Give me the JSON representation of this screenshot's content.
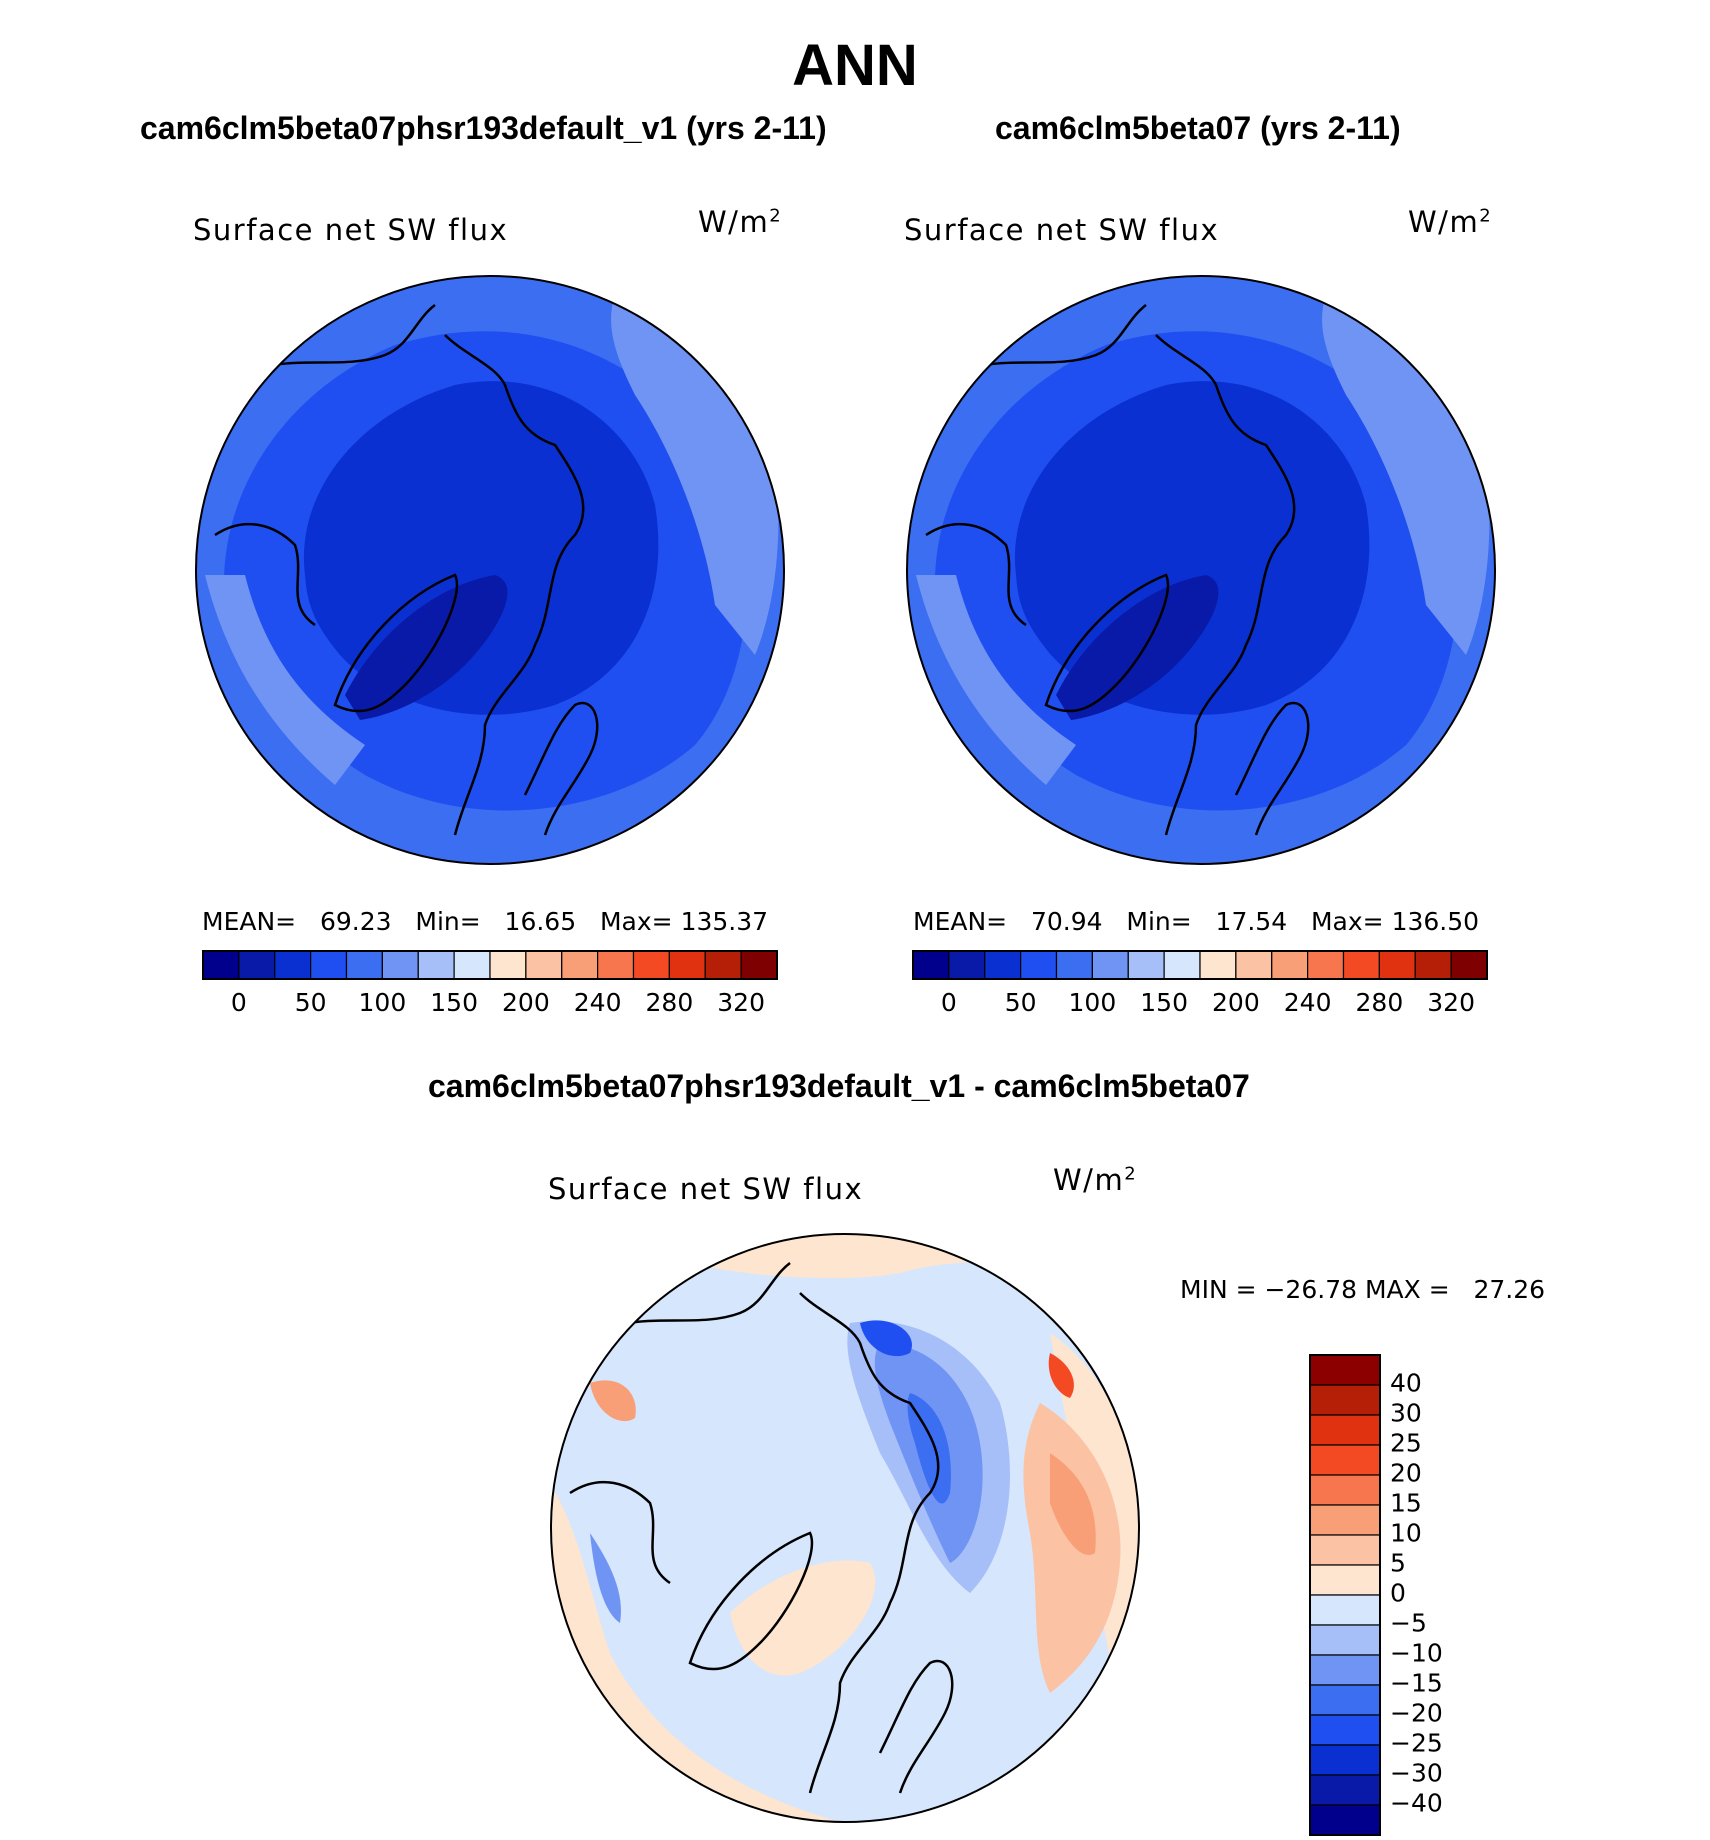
{
  "figure": {
    "season": "ANN",
    "variable_label": "Surface net SW flux",
    "units_prefix": "W/m",
    "units_exp": "2"
  },
  "panels": {
    "left": {
      "title": "cam6clm5beta07phsr193default_v1 (yrs 2-11)",
      "mean_label": "MEAN=",
      "mean": "69.23",
      "min_label": "Min=",
      "min": "16.65",
      "max_label": "Max=",
      "max": "135.37"
    },
    "right": {
      "title": "cam6clm5beta07 (yrs 2-11)",
      "mean_label": "MEAN=",
      "mean": "70.94",
      "min_label": "Min=",
      "min": "17.54",
      "max_label": "Max=",
      "max": "136.50"
    },
    "diff": {
      "title": "cam6clm5beta07phsr193default_v1 - cam6clm5beta07",
      "stats": "MIN = −26.78 MAX =   27.26"
    }
  },
  "colorbars": {
    "abs": {
      "colors": [
        "#00008c",
        "#0a1aa8",
        "#0b30d2",
        "#1f4ff0",
        "#3c6ef2",
        "#7094f4",
        "#a6bff8",
        "#d6e6fc",
        "#fde5d0",
        "#fbc3a3",
        "#f99f77",
        "#f7764e",
        "#f44a23",
        "#e03210",
        "#b51f08",
        "#7f0000"
      ],
      "labels": [
        "0",
        "50",
        "100",
        "150",
        "200",
        "240",
        "280",
        "320"
      ]
    },
    "diff": {
      "colors": [
        "#8c0000",
        "#b51f08",
        "#e03210",
        "#f44a23",
        "#f7764e",
        "#f99f77",
        "#fbc3a3",
        "#fde5d0",
        "#d6e6fc",
        "#a6bff8",
        "#7094f4",
        "#3c6ef2",
        "#1f4ff0",
        "#0b30d2",
        "#0a1aa8",
        "#00008c"
      ],
      "labels": [
        "40",
        "30",
        "25",
        "20",
        "15",
        "10",
        "5",
        "0",
        "−5",
        "−10",
        "−15",
        "−20",
        "−25",
        "−30",
        "−40"
      ]
    }
  },
  "maps": {
    "abs": {
      "background": "#3c6ef2",
      "field_colors": [
        "#1f4ff0",
        "#0b30d2",
        "#0a1aa8",
        "#7094f4",
        "#a6bff8"
      ]
    },
    "diff": {
      "background": "#d6e6fc",
      "field_colors": [
        "#fde5d0",
        "#fbc3a3",
        "#f99f77",
        "#f44a23",
        "#a6bff8",
        "#7094f4",
        "#3c6ef2",
        "#1f4ff0"
      ]
    }
  }
}
